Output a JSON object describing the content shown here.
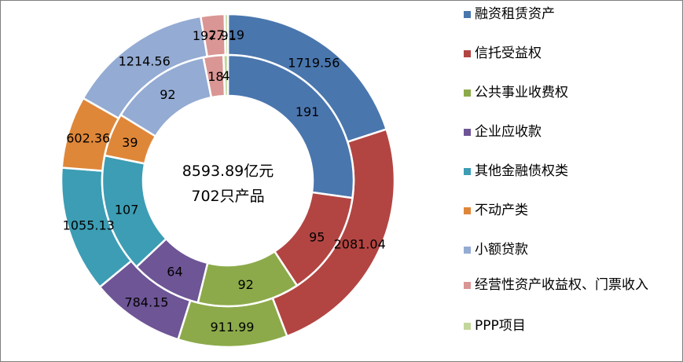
{
  "chart_data": {
    "type": "donut",
    "center_text": [
      "8593.89亿元",
      "702只产品"
    ],
    "categories": [
      "融资租赁资产",
      "信托受益权",
      "公共事业收费权",
      "企业应收款",
      "其他金融债权类",
      "不动产类",
      "小额贷款",
      "经营性资产收益权、门票收入",
      "PPP项目"
    ],
    "colors": [
      "#4a76ae",
      "#b24542",
      "#8caa4a",
      "#6e5596",
      "#3c9db4",
      "#df8739",
      "#94abd3",
      "#d99694",
      "#c3d69b"
    ],
    "series": [
      {
        "ring": "outer",
        "values": [
          1719.56,
          2081.04,
          911.99,
          784.15,
          1055.13,
          602.36,
          1214.56,
          197.91,
          27.19
        ],
        "labels": [
          "1719.56",
          "2081.04",
          "911.99",
          "784.15",
          "1055.13",
          "602.36",
          "1214.56",
          "197.91",
          "27.19"
        ]
      },
      {
        "ring": "inner",
        "values": [
          191,
          95,
          92,
          64,
          107,
          39,
          92,
          18,
          4
        ],
        "labels": [
          "191",
          "95",
          "92",
          "64",
          "107",
          "39",
          "92",
          "18",
          "4"
        ]
      }
    ],
    "legend": {
      "position": "right",
      "items": [
        "融资租赁资产",
        "信托受益权",
        "公共事业收费权",
        "企业应收款",
        "其他金融债权类",
        "不动产类",
        "小额贷款",
        "经营性资产收益权、门票收入",
        "PPP项目"
      ]
    }
  }
}
